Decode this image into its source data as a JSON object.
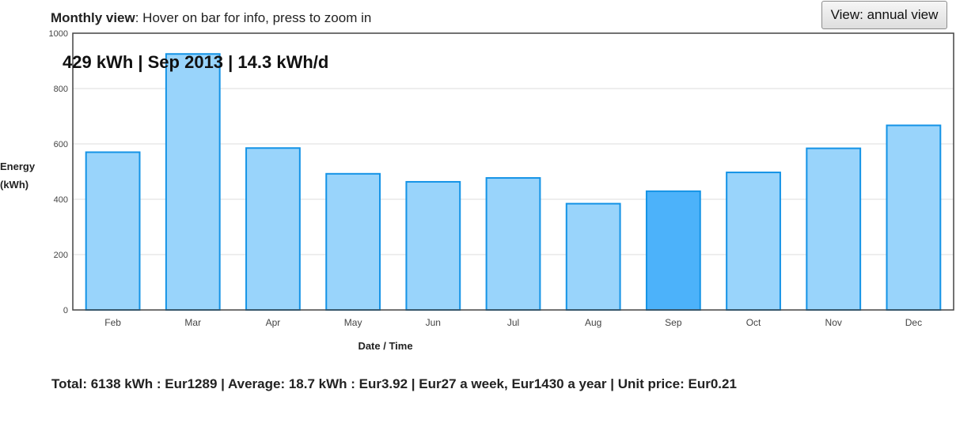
{
  "header": {
    "mode_label": "Monthly view",
    "instructions": ": Hover on bar for info, press to zoom in",
    "view_button_label": "View: annual view"
  },
  "hover_info": "429 kWh | Sep 2013 | 14.3 kWh/d",
  "footer": {
    "summary": "Total: 6138 kWh : Eur1289 | Average: 18.7 kWh : Eur3.92 | Eur27 a week, Eur1430 a year | Unit price: Eur0.21"
  },
  "colors": {
    "bar_fill": "#99d4fb",
    "bar_stroke": "#1493e6",
    "bar_highlight_fill": "#4cb2fa",
    "grid": "#dddddd",
    "frame": "#444444"
  },
  "chart_data": {
    "type": "bar",
    "ylabel_lines": [
      "Energy",
      "(kWh)"
    ],
    "xlabel": "Date / Time",
    "ylim": [
      0,
      1000
    ],
    "yticks": [
      0,
      200,
      400,
      600,
      800,
      1000
    ],
    "grid": true,
    "categories": [
      "Feb",
      "Mar",
      "Apr",
      "May",
      "Jun",
      "Jul",
      "Aug",
      "Sep",
      "Oct",
      "Nov",
      "Dec"
    ],
    "values": [
      570,
      925,
      585,
      492,
      463,
      477,
      384,
      429,
      497,
      584,
      667
    ],
    "highlighted": "Sep"
  }
}
